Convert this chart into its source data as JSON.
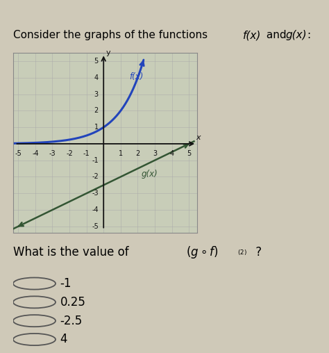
{
  "title_regular": "Consider the graphs of the functions ",
  "title_italic": "f(x)",
  "title_middle": " and ",
  "title_italic2": "g(x)",
  "title_end": ":",
  "question_text": "What is the value of ",
  "question_formula": "(g∘f)(2) ?",
  "choices": [
    "-1",
    "0.25",
    "-2.5",
    "4"
  ],
  "bg_color": "#cfc9b8",
  "graph_bg": "#c8cdb8",
  "graph_outline": "#888888",
  "fx_color": "#2244bb",
  "gx_color": "#335533",
  "axis_color": "#111111",
  "grid_color": "#aaaaaa",
  "tick_color": "#111111",
  "xmin": -5,
  "xmax": 5,
  "ymin": -5,
  "ymax": 5,
  "fx_label": "f(x)",
  "gx_label": "g(x)",
  "gx_slope": 0.5,
  "gx_intercept": -2.5,
  "title_fontsize": 11.0,
  "tick_fontsize": 7.0,
  "label_fontsize": 8.5,
  "question_fontsize": 12.0,
  "choice_fontsize": 12.0
}
